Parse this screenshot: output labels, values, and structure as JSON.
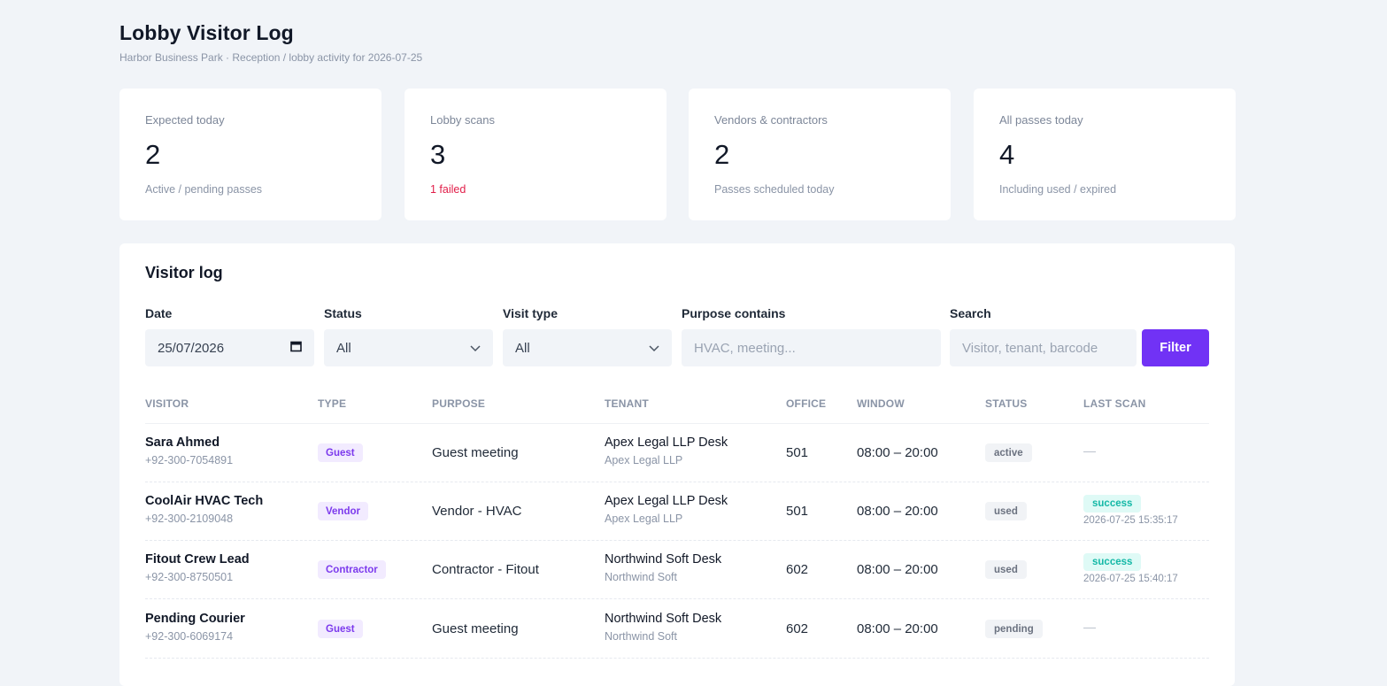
{
  "header": {
    "title": "Lobby Visitor Log",
    "subtitle": "Harbor Business Park · Reception / lobby activity for 2026-07-25"
  },
  "stats": [
    {
      "label": "Expected today",
      "value": "2",
      "note": "Active / pending passes"
    },
    {
      "label": "Lobby scans",
      "value": "3",
      "note": "1 failed",
      "note_color": "#e11d48"
    },
    {
      "label": "Vendors & contractors",
      "value": "2",
      "note": "Passes scheduled today"
    },
    {
      "label": "All passes today",
      "value": "4",
      "note": "Including used / expired"
    }
  ],
  "visitor_log": {
    "title": "Visitor log",
    "filters": {
      "date_label": "Date",
      "date_value": "25/07/2026",
      "status_label": "Status",
      "status_value": "All",
      "visit_type_label": "Visit type",
      "visit_type_value": "All",
      "purpose_label": "Purpose contains",
      "purpose_placeholder": "HVAC, meeting...",
      "search_label": "Search",
      "search_placeholder": "Visitor, tenant, barcode",
      "filter_button": "Filter"
    },
    "columns": [
      "VISITOR",
      "TYPE",
      "PURPOSE",
      "TENANT",
      "OFFICE",
      "WINDOW",
      "STATUS",
      "LAST SCAN"
    ],
    "rows": [
      {
        "name": "Sara Ahmed",
        "phone": "+92-300-7054891",
        "type": "Guest",
        "purpose": "Guest meeting",
        "tenant_desk": "Apex Legal LLP Desk",
        "tenant": "Apex Legal LLP",
        "office": "501",
        "window": "08:00 – 20:00",
        "status": "active",
        "last_scan_result": "",
        "last_scan_time": "—"
      },
      {
        "name": "CoolAir HVAC Tech",
        "phone": "+92-300-2109048",
        "type": "Vendor",
        "purpose": "Vendor - HVAC",
        "tenant_desk": "Apex Legal LLP Desk",
        "tenant": "Apex Legal LLP",
        "office": "501",
        "window": "08:00 – 20:00",
        "status": "used",
        "last_scan_result": "success",
        "last_scan_time": "2026-07-25 15:35:17"
      },
      {
        "name": "Fitout Crew Lead",
        "phone": "+92-300-8750501",
        "type": "Contractor",
        "purpose": "Contractor - Fitout",
        "tenant_desk": "Northwind Soft Desk",
        "tenant": "Northwind Soft",
        "office": "602",
        "window": "08:00 – 20:00",
        "status": "used",
        "last_scan_result": "success",
        "last_scan_time": "2026-07-25 15:40:17"
      },
      {
        "name": "Pending Courier",
        "phone": "+92-300-6069174",
        "type": "Guest",
        "purpose": "Guest meeting",
        "tenant_desk": "Northwind Soft Desk",
        "tenant": "Northwind Soft",
        "office": "602",
        "window": "08:00 – 20:00",
        "status": "pending",
        "last_scan_result": "",
        "last_scan_time": "—"
      }
    ]
  },
  "colors": {
    "accent": "#7132f5",
    "danger": "#e11d48",
    "success": "#14b8a6",
    "background": "#f1f4f8"
  },
  "icons": {
    "date": "calendar-icon",
    "select": "chevron-down-icon"
  }
}
